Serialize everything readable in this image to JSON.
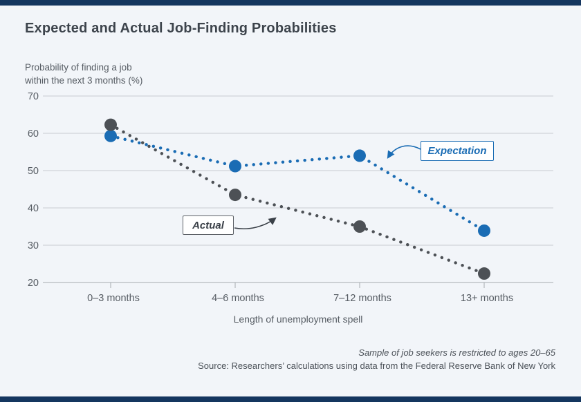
{
  "page": {
    "background": "#f2f5f9",
    "bar_color": "#14365f"
  },
  "header": {
    "title": "Expected and Actual Job-Finding Probabilities"
  },
  "chart_data": {
    "type": "line",
    "title": "Expected and Actual Job-Finding Probabilities",
    "ylabel_line1": "Probability of finding a job",
    "ylabel_line2": "within the next 3 months (%)",
    "xlabel": "Length of unemployment spell",
    "categories": [
      "0–3 months",
      "4–6 months",
      "7–12 months",
      "13+ months"
    ],
    "series": [
      {
        "name": "Expectation",
        "values": [
          59.3,
          51.2,
          54.0,
          33.9
        ],
        "color": "#1a6cb4"
      },
      {
        "name": "Actual",
        "values": [
          62.3,
          43.5,
          35.0,
          22.4
        ],
        "color": "#4d5156"
      }
    ],
    "yticks": [
      70,
      60,
      50,
      40,
      30,
      20
    ],
    "ylim": [
      20,
      70
    ],
    "grid": "horizontal",
    "line_style": "dotted",
    "legend_position": "inline-annotation-boxes",
    "colors": {
      "gridline": "#c8ccd1",
      "axis": "#a5aab0",
      "tick_label": "#565c63"
    }
  },
  "annotations": {
    "expectation_label": "Expectation",
    "actual_label": "Actual"
  },
  "footer": {
    "note": "Sample of job seekers is restricted to ages 20–65",
    "source": "Source: Researchers’ calculations using data from the Federal Reserve Bank of New York"
  }
}
